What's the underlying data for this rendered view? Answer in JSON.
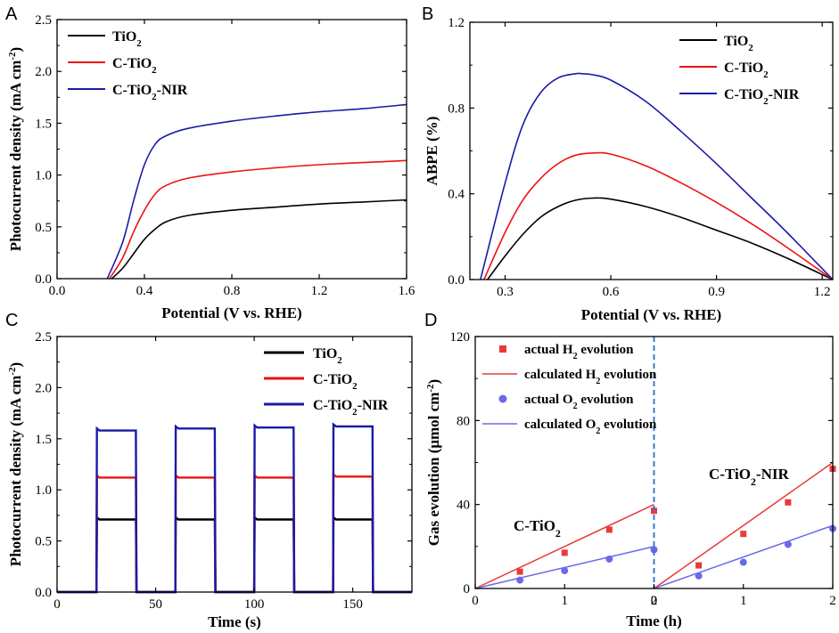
{
  "colors": {
    "tio2": "#000000",
    "ctio2": "#ee1111",
    "ctio2nir": "#1a1aa8",
    "h2": "#e83a3a",
    "o2": "#6a6ae8",
    "divider": "#2a6fd6"
  },
  "chart_data": [
    {
      "panel": "A",
      "type": "line",
      "xlabel": "Potential (V vs. RHE)",
      "ylabel": "Photocurrent density (mA cm",
      "ylabel_sup": "-2",
      "ylabel_end": ")",
      "xlim": [
        0.0,
        1.6
      ],
      "ylim": [
        0.0,
        2.5
      ],
      "xticks": [
        "0.0",
        "0.4",
        "0.8",
        "1.2",
        "1.6"
      ],
      "yticks": [
        "0.0",
        "0.5",
        "1.0",
        "1.5",
        "2.0",
        "2.5"
      ],
      "legend": [
        {
          "base": "TiO",
          "sub": "2",
          "tail": ""
        },
        {
          "base": "C-TiO",
          "sub": "2",
          "tail": ""
        },
        {
          "base": "C-TiO",
          "sub": "2",
          "tail": "-NIR"
        }
      ],
      "series": [
        {
          "name": "TiO2",
          "x": [
            0.25,
            0.3,
            0.35,
            0.4,
            0.45,
            0.5,
            0.6,
            0.8,
            1.0,
            1.2,
            1.4,
            1.6
          ],
          "y": [
            0.0,
            0.1,
            0.24,
            0.38,
            0.48,
            0.55,
            0.61,
            0.66,
            0.69,
            0.72,
            0.74,
            0.76
          ]
        },
        {
          "name": "C-TiO2",
          "x": [
            0.24,
            0.3,
            0.35,
            0.4,
            0.45,
            0.5,
            0.6,
            0.8,
            1.0,
            1.2,
            1.4,
            1.6
          ],
          "y": [
            0.0,
            0.2,
            0.45,
            0.66,
            0.82,
            0.9,
            0.97,
            1.03,
            1.07,
            1.1,
            1.12,
            1.14
          ]
        },
        {
          "name": "C-TiO2-NIR",
          "x": [
            0.23,
            0.3,
            0.35,
            0.4,
            0.45,
            0.5,
            0.6,
            0.8,
            1.0,
            1.2,
            1.4,
            1.6
          ],
          "y": [
            0.0,
            0.35,
            0.75,
            1.1,
            1.3,
            1.38,
            1.45,
            1.52,
            1.57,
            1.61,
            1.64,
            1.68
          ]
        }
      ]
    },
    {
      "panel": "B",
      "type": "line",
      "xlabel": "Potential (V vs. RHE)",
      "ylabel": "ABPE (%)",
      "xlim": [
        0.2,
        1.23
      ],
      "ylim": [
        0.0,
        1.2
      ],
      "xticks": [
        "0.3",
        "0.6",
        "0.9",
        "1.2"
      ],
      "yticks": [
        "0.0",
        "0.4",
        "0.8",
        "1.2"
      ],
      "legend": [
        {
          "base": "TiO",
          "sub": "2",
          "tail": ""
        },
        {
          "base": "C-TiO",
          "sub": "2",
          "tail": ""
        },
        {
          "base": "C-TiO",
          "sub": "2",
          "tail": "-NIR"
        }
      ],
      "series": [
        {
          "name": "TiO2",
          "x": [
            0.25,
            0.3,
            0.35,
            0.4,
            0.45,
            0.5,
            0.55,
            0.6,
            0.7,
            0.8,
            0.9,
            1.0,
            1.1,
            1.23
          ],
          "y": [
            0.0,
            0.11,
            0.21,
            0.29,
            0.34,
            0.37,
            0.38,
            0.375,
            0.34,
            0.29,
            0.23,
            0.17,
            0.1,
            0.0
          ]
        },
        {
          "name": "C-TiO2",
          "x": [
            0.24,
            0.3,
            0.35,
            0.4,
            0.45,
            0.5,
            0.55,
            0.6,
            0.7,
            0.8,
            0.9,
            1.0,
            1.1,
            1.23
          ],
          "y": [
            0.0,
            0.22,
            0.37,
            0.47,
            0.54,
            0.58,
            0.59,
            0.585,
            0.53,
            0.45,
            0.36,
            0.26,
            0.15,
            0.0
          ]
        },
        {
          "name": "C-TiO2-NIR",
          "x": [
            0.23,
            0.3,
            0.35,
            0.4,
            0.45,
            0.5,
            0.52,
            0.55,
            0.6,
            0.7,
            0.8,
            0.9,
            1.0,
            1.1,
            1.23
          ],
          "y": [
            0.0,
            0.45,
            0.72,
            0.87,
            0.94,
            0.96,
            0.96,
            0.955,
            0.93,
            0.83,
            0.69,
            0.54,
            0.38,
            0.22,
            0.0
          ]
        }
      ]
    },
    {
      "panel": "C",
      "type": "line",
      "xlabel": "Time (s)",
      "ylabel": "Photocurrent density (mA cm",
      "ylabel_sup": "-2",
      "ylabel_end": ")",
      "xlim": [
        0,
        180
      ],
      "ylim": [
        0.0,
        2.5
      ],
      "xticks": [
        "0",
        "50",
        "100",
        "150"
      ],
      "yticks": [
        "0.0",
        "0.5",
        "1.0",
        "1.5",
        "2.0",
        "2.5"
      ],
      "light_on_intervals": [
        [
          20,
          40
        ],
        [
          60,
          80
        ],
        [
          100,
          120
        ],
        [
          140,
          160
        ]
      ],
      "legend": [
        {
          "base": "TiO",
          "sub": "2",
          "tail": ""
        },
        {
          "base": "C-TiO",
          "sub": "2",
          "tail": ""
        },
        {
          "base": "C-TiO",
          "sub": "2",
          "tail": "-NIR"
        }
      ],
      "series": [
        {
          "name": "TiO2",
          "on_values": [
            0.71,
            0.71,
            0.71,
            0.71
          ],
          "off_value": 0.0
        },
        {
          "name": "C-TiO2",
          "on_values": [
            1.12,
            1.12,
            1.12,
            1.13
          ],
          "off_value": 0.0
        },
        {
          "name": "C-TiO2-NIR",
          "on_values": [
            1.58,
            1.6,
            1.61,
            1.62
          ],
          "off_value": 0.0
        }
      ]
    },
    {
      "panel": "D",
      "type": "scatter",
      "xlabel": "Time (h)",
      "ylabel": "Gas evolution (μmol cm",
      "ylabel_sup": "-2",
      "ylabel_end": ")",
      "ylim": [
        0,
        120
      ],
      "yticks": [
        "0",
        "40",
        "80",
        "120"
      ],
      "xticks": [
        "0",
        "1",
        "2",
        "0",
        "1",
        "2"
      ],
      "legend": [
        {
          "marker": "square",
          "pre": "actual H",
          "sub": "2",
          "post": " evolution"
        },
        {
          "marker": "line-h2",
          "pre": "calculated H",
          "sub": "2",
          "post": " evolution"
        },
        {
          "marker": "circle",
          "pre": "actual O",
          "sub": "2",
          "post": " evolution"
        },
        {
          "marker": "line-o2",
          "pre": "calculated O",
          "sub": "2",
          "post": " evolution"
        }
      ],
      "groups": [
        {
          "label": {
            "base": "C-TiO",
            "sub": "2",
            "tail": ""
          },
          "x": [
            0,
            0.5,
            1.0,
            1.5,
            2.0
          ],
          "actual_H2": [
            0,
            8,
            17,
            28,
            37
          ],
          "actual_O2": [
            0,
            4,
            8.5,
            14,
            18.5
          ],
          "calculated_H2": [
            0,
            40
          ],
          "calculated_O2": [
            0,
            20
          ]
        },
        {
          "label": {
            "base": "C-TiO",
            "sub": "2",
            "tail": "-NIR"
          },
          "x": [
            0,
            0.5,
            1.0,
            1.5,
            2.0
          ],
          "actual_H2": [
            0,
            11,
            26,
            41,
            57
          ],
          "actual_O2": [
            0,
            6,
            12.5,
            21,
            28.5
          ],
          "calculated_H2": [
            0,
            60
          ],
          "calculated_O2": [
            0,
            30
          ]
        }
      ]
    }
  ]
}
